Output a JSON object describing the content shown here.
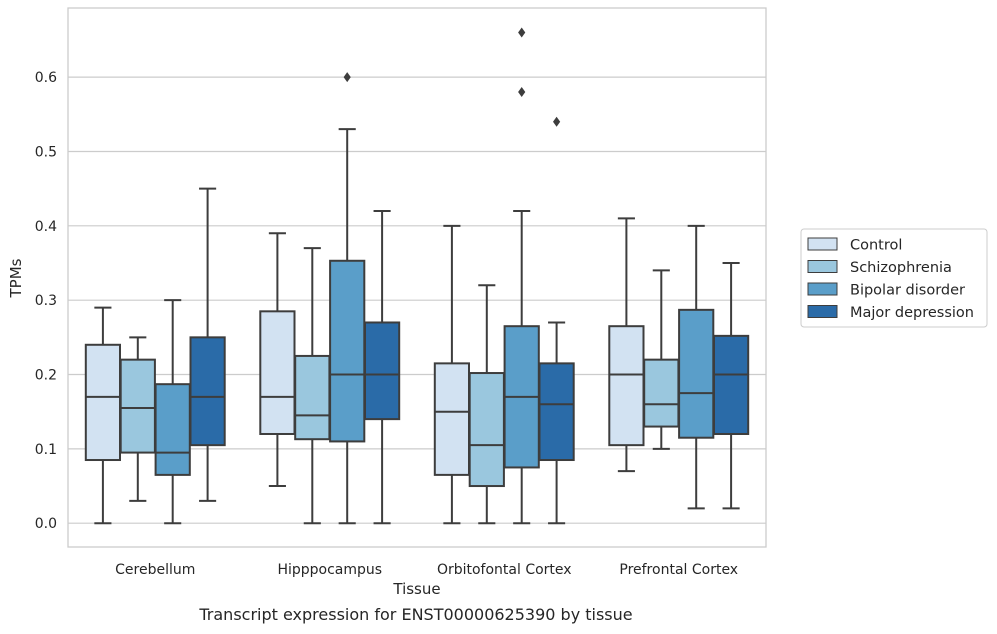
{
  "caption": "Transcript expression for ENST00000625390 by tissue",
  "chart_data": {
    "type": "box",
    "title": "",
    "xlabel": "Tissue",
    "ylabel": "TPMs",
    "ylim": [
      -0.032,
      0.693
    ],
    "yticks": [
      0.0,
      0.1,
      0.2,
      0.3,
      0.4,
      0.5,
      0.6
    ],
    "ytick_labels": [
      "0.0",
      "0.1",
      "0.2",
      "0.3",
      "0.4",
      "0.5",
      "0.6"
    ],
    "grid": "horizontal",
    "legend_position": "right-outside",
    "categories": [
      "Cerebellum",
      "Hipppocampus",
      "Orbitofontal Cortex",
      "Prefrontal Cortex"
    ],
    "series": [
      {
        "name": "Control",
        "color": "#d2e2f2",
        "boxes": [
          {
            "whislo": 0.0,
            "q1": 0.085,
            "med": 0.17,
            "q3": 0.24,
            "whishi": 0.29,
            "fliers": []
          },
          {
            "whislo": 0.05,
            "q1": 0.12,
            "med": 0.17,
            "q3": 0.285,
            "whishi": 0.39,
            "fliers": []
          },
          {
            "whislo": 0.0,
            "q1": 0.065,
            "med": 0.15,
            "q3": 0.215,
            "whishi": 0.4,
            "fliers": []
          },
          {
            "whislo": 0.07,
            "q1": 0.105,
            "med": 0.2,
            "q3": 0.265,
            "whishi": 0.41,
            "fliers": []
          }
        ]
      },
      {
        "name": "Schizophrenia",
        "color": "#9ac7de",
        "boxes": [
          {
            "whislo": 0.03,
            "q1": 0.095,
            "med": 0.155,
            "q3": 0.22,
            "whishi": 0.25,
            "fliers": []
          },
          {
            "whislo": 0.0,
            "q1": 0.113,
            "med": 0.145,
            "q3": 0.225,
            "whishi": 0.37,
            "fliers": []
          },
          {
            "whislo": 0.0,
            "q1": 0.05,
            "med": 0.105,
            "q3": 0.202,
            "whishi": 0.32,
            "fliers": []
          },
          {
            "whislo": 0.1,
            "q1": 0.13,
            "med": 0.16,
            "q3": 0.22,
            "whishi": 0.34,
            "fliers": []
          }
        ]
      },
      {
        "name": "Bipolar disorder",
        "color": "#5a9ec9",
        "boxes": [
          {
            "whislo": 0.0,
            "q1": 0.065,
            "med": 0.095,
            "q3": 0.187,
            "whishi": 0.3,
            "fliers": []
          },
          {
            "whislo": 0.0,
            "q1": 0.11,
            "med": 0.2,
            "q3": 0.353,
            "whishi": 0.53,
            "fliers": [
              0.6
            ]
          },
          {
            "whislo": 0.0,
            "q1": 0.075,
            "med": 0.17,
            "q3": 0.265,
            "whishi": 0.42,
            "fliers": [
              0.58,
              0.66
            ]
          },
          {
            "whislo": 0.02,
            "q1": 0.115,
            "med": 0.175,
            "q3": 0.287,
            "whishi": 0.4,
            "fliers": []
          }
        ]
      },
      {
        "name": "Major depression",
        "color": "#2a6ba8",
        "boxes": [
          {
            "whislo": 0.03,
            "q1": 0.105,
            "med": 0.17,
            "q3": 0.25,
            "whishi": 0.45,
            "fliers": []
          },
          {
            "whislo": 0.0,
            "q1": 0.14,
            "med": 0.2,
            "q3": 0.27,
            "whishi": 0.42,
            "fliers": []
          },
          {
            "whislo": 0.0,
            "q1": 0.085,
            "med": 0.16,
            "q3": 0.215,
            "whishi": 0.27,
            "fliers": [
              0.54
            ]
          },
          {
            "whislo": 0.02,
            "q1": 0.12,
            "med": 0.2,
            "q3": 0.252,
            "whishi": 0.35,
            "fliers": []
          }
        ]
      }
    ]
  }
}
